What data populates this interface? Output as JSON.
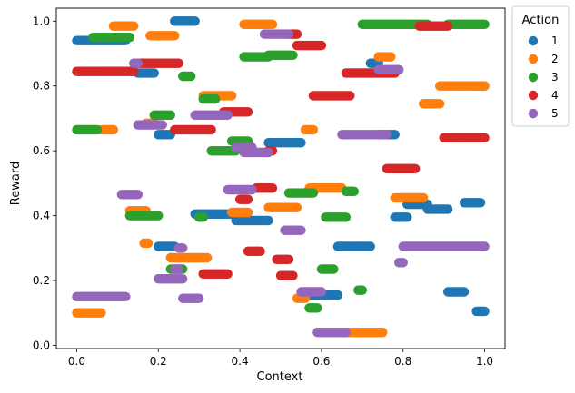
{
  "chart_data": {
    "type": "scatter",
    "title": "",
    "xlabel": "Context",
    "ylabel": "Reward",
    "xlim": [
      -0.05,
      1.05
    ],
    "ylim": [
      -0.01,
      1.04
    ],
    "xticks": [
      "0.0",
      "0.2",
      "0.4",
      "0.6",
      "0.8",
      "1.0"
    ],
    "yticks": [
      "0.0",
      "0.2",
      "0.4",
      "0.6",
      "0.8",
      "1.0"
    ],
    "grid": false,
    "legend": {
      "title": "Action",
      "placement": "outside-top-right"
    },
    "series": [
      {
        "name": "1",
        "color": "#1f77b4",
        "segments": [
          [
            0.0,
            0.12,
            0.94
          ],
          [
            0.15,
            0.19,
            0.84
          ],
          [
            0.2,
            0.23,
            0.65
          ],
          [
            0.2,
            0.24,
            0.305
          ],
          [
            0.24,
            0.29,
            1.0
          ],
          [
            0.29,
            0.34,
            0.405
          ],
          [
            0.34,
            0.39,
            0.405
          ],
          [
            0.39,
            0.47,
            0.385
          ],
          [
            0.47,
            0.55,
            0.625
          ],
          [
            0.55,
            0.64,
            0.155
          ],
          [
            0.64,
            0.72,
            0.305
          ],
          [
            0.72,
            0.74,
            0.87
          ],
          [
            0.74,
            0.78,
            0.65
          ],
          [
            0.78,
            0.81,
            0.395
          ],
          [
            0.81,
            0.86,
            0.435
          ],
          [
            0.86,
            0.91,
            0.42
          ],
          [
            0.91,
            0.95,
            0.165
          ],
          [
            0.95,
            0.99,
            0.44
          ],
          [
            0.98,
            1.0,
            0.8
          ],
          [
            0.98,
            1.0,
            0.105
          ]
        ]
      },
      {
        "name": "2",
        "color": "#ff7f0e",
        "segments": [
          [
            0.0,
            0.06,
            0.1
          ],
          [
            0.06,
            0.09,
            0.665
          ],
          [
            0.09,
            0.14,
            0.985
          ],
          [
            0.13,
            0.17,
            0.415
          ],
          [
            0.165,
            0.175,
            0.315
          ],
          [
            0.17,
            0.19,
            0.685
          ],
          [
            0.18,
            0.24,
            0.955
          ],
          [
            0.23,
            0.32,
            0.27
          ],
          [
            0.31,
            0.38,
            0.77
          ],
          [
            0.38,
            0.42,
            0.41
          ],
          [
            0.41,
            0.48,
            0.99
          ],
          [
            0.47,
            0.54,
            0.425
          ],
          [
            0.54,
            0.56,
            0.145
          ],
          [
            0.56,
            0.58,
            0.665
          ],
          [
            0.57,
            0.65,
            0.485
          ],
          [
            0.65,
            0.75,
            0.04
          ],
          [
            0.74,
            0.77,
            0.89
          ],
          [
            0.78,
            0.85,
            0.455
          ],
          [
            0.85,
            0.89,
            0.745
          ],
          [
            0.89,
            1.0,
            0.8
          ]
        ]
      },
      {
        "name": "3",
        "color": "#2ca02c",
        "segments": [
          [
            0.0,
            0.05,
            0.665
          ],
          [
            0.04,
            0.13,
            0.95
          ],
          [
            0.13,
            0.2,
            0.4
          ],
          [
            0.19,
            0.23,
            0.71
          ],
          [
            0.23,
            0.26,
            0.235
          ],
          [
            0.26,
            0.28,
            0.83
          ],
          [
            0.3,
            0.31,
            0.395
          ],
          [
            0.31,
            0.34,
            0.76
          ],
          [
            0.33,
            0.39,
            0.6
          ],
          [
            0.38,
            0.42,
            0.63
          ],
          [
            0.41,
            0.47,
            0.89
          ],
          [
            0.47,
            0.53,
            0.895
          ],
          [
            0.52,
            0.58,
            0.47
          ],
          [
            0.57,
            0.59,
            0.115
          ],
          [
            0.6,
            0.63,
            0.235
          ],
          [
            0.61,
            0.66,
            0.395
          ],
          [
            0.66,
            0.68,
            0.475
          ],
          [
            0.69,
            0.7,
            0.17
          ],
          [
            0.7,
            0.86,
            0.99
          ],
          [
            0.91,
            1.0,
            0.99
          ]
        ]
      },
      {
        "name": "4",
        "color": "#d62728",
        "segments": [
          [
            0.0,
            0.14,
            0.845
          ],
          [
            0.14,
            0.25,
            0.87
          ],
          [
            0.24,
            0.33,
            0.665
          ],
          [
            0.31,
            0.37,
            0.22
          ],
          [
            0.36,
            0.42,
            0.72
          ],
          [
            0.4,
            0.42,
            0.45
          ],
          [
            0.42,
            0.45,
            0.29
          ],
          [
            0.44,
            0.48,
            0.485
          ],
          [
            0.47,
            0.48,
            0.6
          ],
          [
            0.49,
            0.52,
            0.265
          ],
          [
            0.5,
            0.53,
            0.215
          ],
          [
            0.52,
            0.54,
            0.96
          ],
          [
            0.54,
            0.6,
            0.925
          ],
          [
            0.58,
            0.67,
            0.77
          ],
          [
            0.66,
            0.78,
            0.84
          ],
          [
            0.76,
            0.83,
            0.545
          ],
          [
            0.84,
            0.91,
            0.985
          ],
          [
            0.9,
            1.0,
            0.64
          ]
        ]
      },
      {
        "name": "5",
        "color": "#9467bd",
        "segments": [
          [
            0.0,
            0.12,
            0.15
          ],
          [
            0.11,
            0.15,
            0.465
          ],
          [
            0.14,
            0.15,
            0.87
          ],
          [
            0.15,
            0.21,
            0.68
          ],
          [
            0.2,
            0.26,
            0.205
          ],
          [
            0.24,
            0.25,
            0.235
          ],
          [
            0.25,
            0.26,
            0.3
          ],
          [
            0.26,
            0.3,
            0.145
          ],
          [
            0.29,
            0.37,
            0.71
          ],
          [
            0.37,
            0.43,
            0.48
          ],
          [
            0.39,
            0.43,
            0.61
          ],
          [
            0.41,
            0.47,
            0.595
          ],
          [
            0.46,
            0.52,
            0.96
          ],
          [
            0.51,
            0.55,
            0.355
          ],
          [
            0.55,
            0.6,
            0.165
          ],
          [
            0.59,
            0.66,
            0.04
          ],
          [
            0.65,
            0.76,
            0.65
          ],
          [
            0.74,
            0.79,
            0.85
          ],
          [
            0.79,
            0.8,
            0.255
          ],
          [
            0.8,
            1.0,
            0.305
          ]
        ]
      }
    ]
  }
}
